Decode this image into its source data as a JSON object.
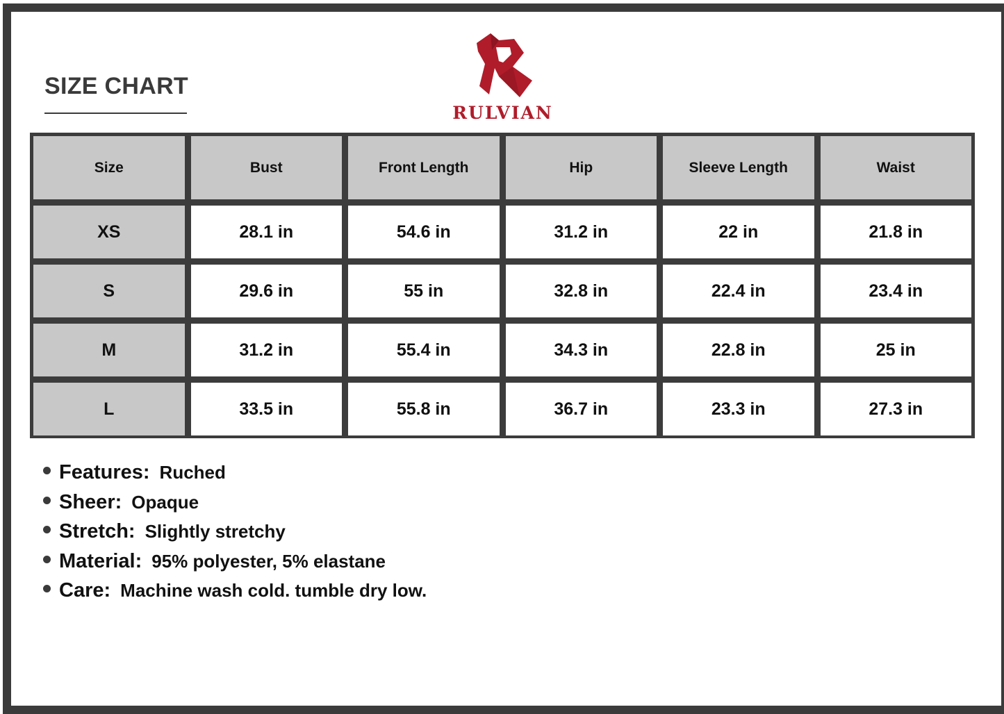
{
  "title": "SIZE CHART",
  "brand": {
    "name": "RULVIAN",
    "color": "#b01c2a"
  },
  "table": {
    "headers": [
      "Size",
      "Bust",
      "Front Length",
      "Hip",
      "Sleeve Length",
      "Waist"
    ],
    "rows": [
      [
        "XS",
        "28.1 in",
        "54.6 in",
        "31.2 in",
        "22 in",
        "21.8 in"
      ],
      [
        "S",
        "29.6 in",
        "55 in",
        "32.8 in",
        "22.4 in",
        "23.4 in"
      ],
      [
        "M",
        "31.2 in",
        "55.4 in",
        "34.3 in",
        "22.8 in",
        "25 in"
      ],
      [
        "L",
        "33.5 in",
        "55.8 in",
        "36.7 in",
        "23.3 in",
        "27.3 in"
      ]
    ]
  },
  "features": [
    {
      "label": "Features:",
      "value": "Ruched"
    },
    {
      "label": "Sheer:",
      "value": "Opaque"
    },
    {
      "label": "Stretch:",
      "value": "Slightly stretchy"
    },
    {
      "label": "Material:",
      "value": "95% polyester, 5% elastane"
    },
    {
      "label": "Care:",
      "value": "Machine wash cold. tumble dry low."
    }
  ]
}
